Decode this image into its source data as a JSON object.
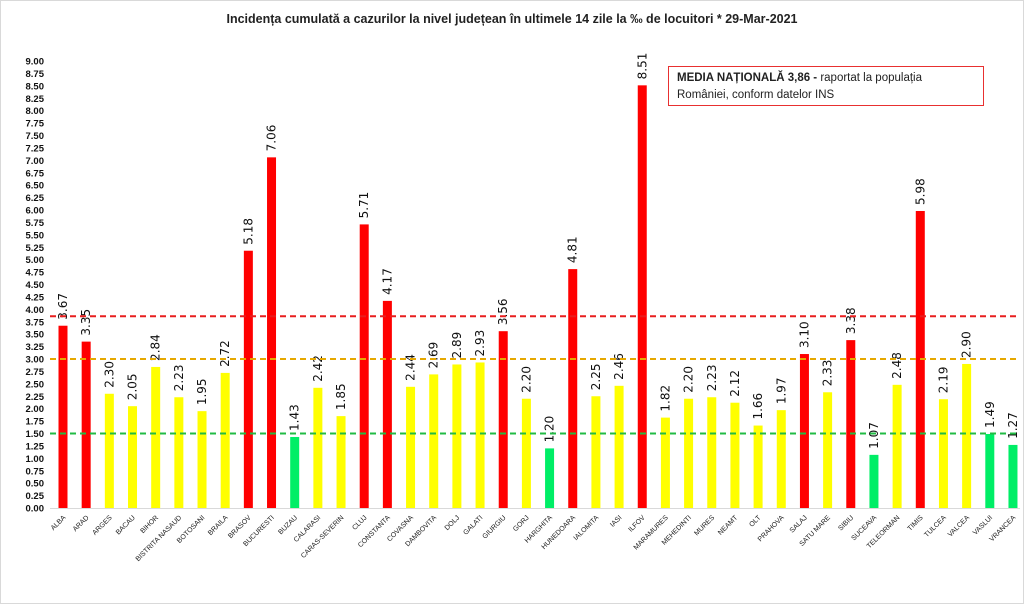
{
  "chart_data": {
    "type": "bar",
    "title": "Incidența cumulată a cazurilor la nivel județean în ultimele 14 zile la ‰ de locuitori * 29-Mar-2021",
    "xlabel": "",
    "ylabel": "",
    "ylim": [
      0,
      9
    ],
    "ytick_step": 0.25,
    "grid": false,
    "categories": [
      "ALBA",
      "ARAD",
      "ARGES",
      "BACAU",
      "BIHOR",
      "BISTRITA NASAUD",
      "BOTOSANI",
      "BRAILA",
      "BRASOV",
      "BUCURESTI",
      "BUZAU",
      "CALARASI",
      "CARAS-SEVERIN",
      "CLUJ",
      "CONSTANTA",
      "COVASNA",
      "DAMBOVITA",
      "DOLJ",
      "GALATI",
      "GIURGIU",
      "GORJ",
      "HARGHITA",
      "HUNEDOARA",
      "IALOMITA",
      "IASI",
      "ILFOV",
      "MARAMURES",
      "MEHEDINTI",
      "MURES",
      "NEAMT",
      "OLT",
      "PRAHOVA",
      "SALAJ",
      "SATU MARE",
      "SIBIU",
      "SUCEAVA",
      "TELEORMAN",
      "TIMIS",
      "TULCEA",
      "VALCEA",
      "VASLUI",
      "VRANCEA"
    ],
    "values": [
      3.67,
      3.35,
      2.3,
      2.05,
      2.84,
      2.23,
      1.95,
      2.72,
      5.18,
      7.06,
      1.43,
      2.42,
      1.85,
      5.71,
      4.17,
      2.44,
      2.69,
      2.89,
      2.93,
      3.56,
      2.2,
      1.2,
      4.81,
      2.25,
      2.46,
      8.51,
      1.82,
      2.2,
      2.23,
      2.12,
      1.66,
      1.97,
      3.1,
      2.33,
      3.38,
      1.07,
      2.48,
      5.98,
      2.19,
      2.9,
      1.49,
      1.27
    ],
    "colors": {
      "high": "#ff0000",
      "medium": "#ffff00",
      "low": "#00ee66"
    },
    "reference_lines": [
      {
        "value": 3.86,
        "color": "#e81e1e",
        "style": "dashed"
      },
      {
        "value": 3.0,
        "color": "#e6a800",
        "style": "dashed"
      },
      {
        "value": 1.5,
        "color": "#22bb44",
        "style": "dashed"
      }
    ],
    "annotation": {
      "bold": "MEDIA NAȚIONALĂ  3,86 -",
      "text": " raportat la populația României, conform datelor INS"
    }
  }
}
